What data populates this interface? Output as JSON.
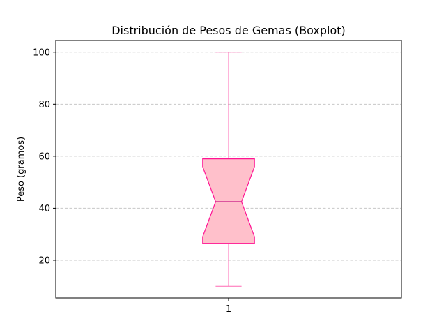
{
  "chart_data": {
    "type": "boxplot",
    "title": "Distribución de Pesos de Gemas (Boxplot)",
    "xlabel": "",
    "ylabel": "Peso (gramos)",
    "categories": [
      "1"
    ],
    "ylim": [
      5.5,
      104.5
    ],
    "yticks": [
      20,
      40,
      60,
      80,
      100
    ],
    "grid": {
      "y": true,
      "style": "dashed"
    },
    "notch": true,
    "series": [
      {
        "whisker_low": 10,
        "q1": 26.5,
        "median": 42.5,
        "q3": 59,
        "whisker_high": 100,
        "notch_low": 29,
        "notch_high": 56
      }
    ],
    "colors": {
      "box_fill": "#ffc0cb",
      "box_edge": "#ff1493",
      "whisker": "#ff69b4",
      "median": "#c71585",
      "grid": "#c8c8c8"
    }
  }
}
